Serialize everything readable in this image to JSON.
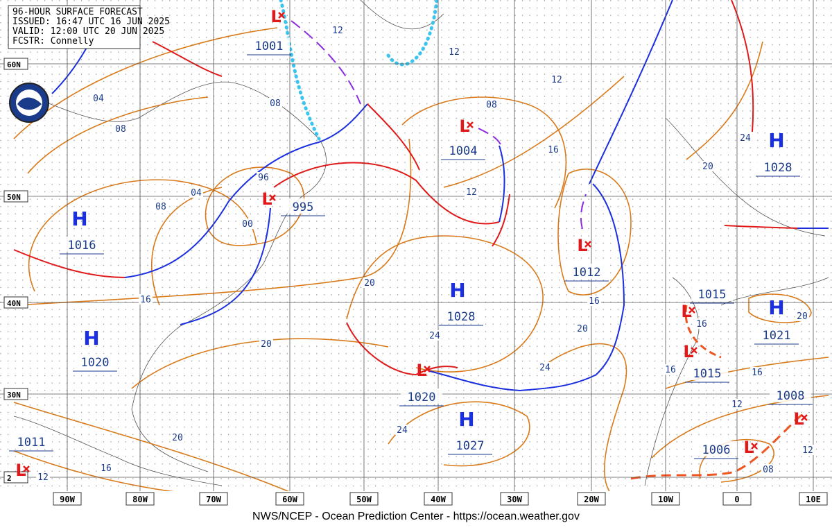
{
  "header": {
    "title": "96-HOUR SURFACE FORECAST",
    "issued": "ISSUED: 16:47 UTC 16 JUN 2025",
    "valid": "VALID: 12:00 UTC 20 JUN 2025",
    "forecaster": "FCSTR: Connelly"
  },
  "longitudes": [
    "90W",
    "80W",
    "70W",
    "60W",
    "50W",
    "40W",
    "30W",
    "20W",
    "10W",
    "0",
    "10E"
  ],
  "latitudes": [
    "60N",
    "50N",
    "40N",
    "30N",
    "2"
  ],
  "systems": [
    {
      "symbol": "H",
      "pressure": "1016"
    },
    {
      "symbol": "H",
      "pressure": "1020"
    },
    {
      "symbol": "H",
      "pressure": "1028"
    },
    {
      "symbol": "H",
      "pressure": "1027"
    },
    {
      "symbol": "H",
      "pressure": "1028"
    },
    {
      "symbol": "H",
      "pressure": "1021"
    },
    {
      "symbol": "L",
      "pressure": "1001"
    },
    {
      "symbol": "L",
      "pressure": "1004"
    },
    {
      "symbol": "L",
      "pressure": "995"
    },
    {
      "symbol": "L",
      "pressure": "1012"
    },
    {
      "symbol": "L",
      "pressure": "1020"
    },
    {
      "symbol": "L",
      "pressure": "1015"
    },
    {
      "symbol": "L",
      "pressure": "1015"
    },
    {
      "symbol": "L",
      "pressure": "1008"
    },
    {
      "symbol": "L",
      "pressure": "1006"
    },
    {
      "symbol": "L",
      "pressure": "1011"
    }
  ],
  "isobar_labels": [
    "04",
    "08",
    "08",
    "04",
    "96",
    "00",
    "08",
    "12",
    "12",
    "12",
    "08",
    "16",
    "12",
    "20",
    "16",
    "24",
    "20",
    "24",
    "20",
    "16",
    "16",
    "20",
    "24",
    "20",
    "16",
    "16",
    "12",
    "12",
    "08",
    "24",
    "20",
    "16",
    "12"
  ],
  "footer": "NWS/NCEP - Ocean Prediction Center - https://ocean.weather.gov"
}
